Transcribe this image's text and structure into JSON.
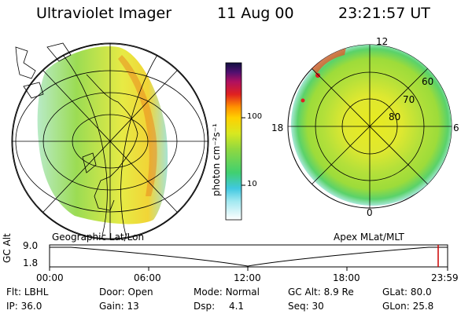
{
  "header": {
    "instrument": "Ultraviolet Imager",
    "date": "11 Aug 00",
    "time": "23:21:57 UT"
  },
  "colorbar": {
    "unit": "photon cm⁻²s⁻¹",
    "ticks": [
      "100",
      "10"
    ]
  },
  "polar_plot": {
    "mlt_labels": [
      "12",
      "18",
      "6",
      "0"
    ],
    "lat_labels": [
      "60",
      "70",
      "80"
    ]
  },
  "panel_labels": {
    "left": "Geographic Lat/Lon",
    "right": "Apex MLat/MLT"
  },
  "altitude_strip": {
    "axis_label": "GC Alt",
    "y_ticks": [
      "9.0",
      "1.8"
    ],
    "x_ticks": [
      "00:00",
      "06:00",
      "12:00",
      "18:00",
      "23:59"
    ],
    "marker_color": "#cc0000"
  },
  "info": {
    "filter": {
      "label": "Flt:",
      "value": "LBHL"
    },
    "ip": {
      "label": "IP:",
      "value": "36.0"
    },
    "door": {
      "label": "Door:",
      "value": "Open"
    },
    "gain": {
      "label": "Gain:",
      "value": "13"
    },
    "mode": {
      "label": "Mode:",
      "value": "Normal"
    },
    "dsp": {
      "label": "Dsp:",
      "value": "4.1"
    },
    "gc_alt": {
      "label": "GC Alt:",
      "value": "8.9 Re"
    },
    "seq": {
      "label": "Seq:",
      "value": "30"
    },
    "glat": {
      "label": "GLat:",
      "value": "80.0"
    },
    "glon": {
      "label": "GLon:",
      "value": "25.8"
    }
  }
}
